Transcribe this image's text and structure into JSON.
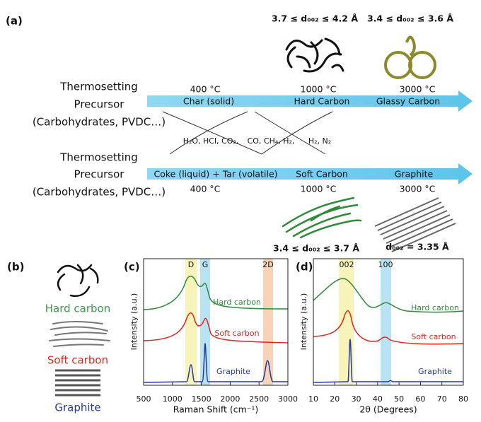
{
  "panel_a": {
    "label": "(a)",
    "spacing_hard": "3.7 ≤ d₀₀₂ ≤ 4.2 Å",
    "spacing_glassy": "3.4 ≤ d₀₀₂ ≤ 3.6 Å",
    "precursor_1": [
      "Thermosetting",
      "Precursor",
      "(Carbohydrates, PVDC…)"
    ],
    "arrow_1": {
      "temps": [
        "400 °C",
        "1000 °C",
        "3000 °C"
      ],
      "stages": [
        "Char (solid)",
        "Hard Carbon",
        "Glassy Carbon"
      ]
    },
    "gases": [
      "H₂O, HCl, CO₂,",
      "CO, CH₄, H₂,",
      "H₂, N₂"
    ],
    "precursor_2": [
      "Thermosetting",
      "Precursor",
      "(Carbohydrates, PVDC…)"
    ],
    "arrow_2": {
      "stages": [
        "Coke (liquid) + Tar (volatile)",
        "Soft Carbon",
        "Graphite"
      ],
      "temps": [
        "400 °C",
        "1000 °C",
        "3000 °C"
      ]
    },
    "spacing_soft": "3.4 ≤ d₀₀₂ ≤ 3.7 Å",
    "spacing_graphite": "d₀₀₂ = 3.35 Å"
  },
  "panel_b": {
    "label": "(b)",
    "items": [
      "Hard carbon",
      "Soft carbon",
      "Graphite"
    ]
  },
  "panel_c": {
    "label": "(c)",
    "x_label": "Raman Shift (cm⁻¹)",
    "y_label": "Intensity (a.u.)",
    "bands": [
      "D",
      "G",
      "2D"
    ],
    "curves": [
      "Hard carbon",
      "Soft carbon",
      "Graphite"
    ],
    "xlim": [
      500,
      3000
    ],
    "xticks": [
      500,
      1000,
      1500,
      2000,
      2500,
      3000
    ]
  },
  "panel_d": {
    "label": "(d)",
    "x_label": "2θ (Degrees)",
    "y_label": "Intensity (a.u.)",
    "bands": [
      "002",
      "100"
    ],
    "curves": [
      "Hard carbon",
      "Soft carbon",
      "Graphite"
    ],
    "xlim": [
      10,
      80
    ],
    "xticks": [
      10,
      20,
      30,
      40,
      50,
      60,
      70,
      80
    ]
  }
}
